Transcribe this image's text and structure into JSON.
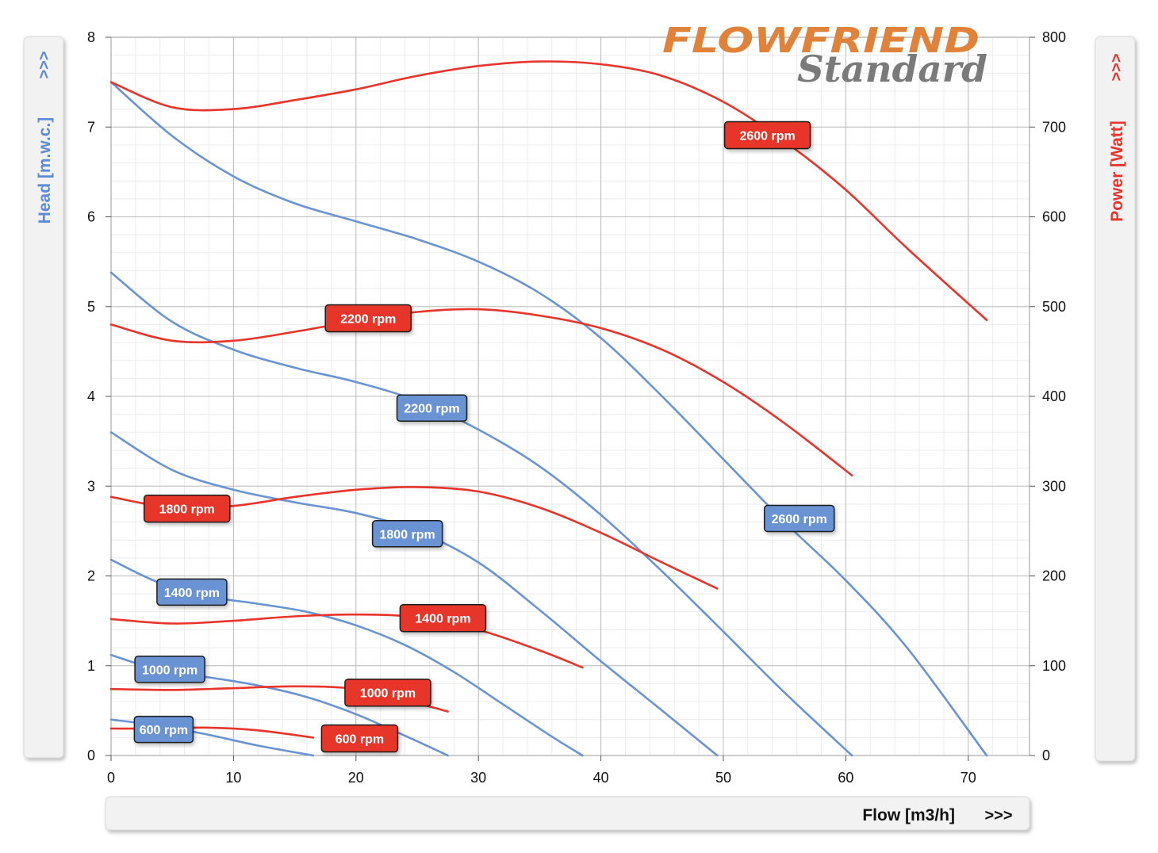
{
  "chart_data": {
    "type": "line",
    "title": "",
    "logo": {
      "line1": "FLOWFRIEND",
      "line2": "Standard",
      "line1_color": "#e0823a",
      "line2_color": "#7a7a7a"
    },
    "xlabel": "Flow [m3/h]",
    "xlabel_arrow": ">>>",
    "ylabel_left": "Head [m.w.c.]",
    "ylabel_left_arrow": ">>>",
    "ylabel_right": "Power  [Watt]",
    "ylabel_right_arrow": ">>>",
    "xlim": [
      0,
      75
    ],
    "ylim_left": [
      0,
      8
    ],
    "ylim_right": [
      0,
      800
    ],
    "x_ticks": [
      0,
      10,
      20,
      30,
      40,
      50,
      60,
      70
    ],
    "y_left_ticks": [
      0,
      1,
      2,
      3,
      4,
      5,
      6,
      7,
      8
    ],
    "y_right_ticks": [
      0,
      100,
      200,
      300,
      400,
      500,
      600,
      700,
      800
    ],
    "grid": true,
    "colors": {
      "head": "#6a93d4",
      "power": "#e8342a"
    },
    "head_series": [
      {
        "name": "600 rpm",
        "x": [
          0,
          4,
          8,
          12,
          16.5
        ],
        "y": [
          0.4,
          0.33,
          0.23,
          0.11,
          0.0
        ]
      },
      {
        "name": "1000 rpm",
        "x": [
          0,
          4,
          8,
          12,
          16,
          20,
          24,
          27.5
        ],
        "y": [
          1.12,
          0.95,
          0.87,
          0.78,
          0.65,
          0.46,
          0.22,
          0.0
        ]
      },
      {
        "name": "1400 rpm",
        "x": [
          0,
          4,
          8,
          12,
          16,
          20,
          24,
          28,
          32,
          36,
          38.5
        ],
        "y": [
          2.18,
          1.92,
          1.77,
          1.69,
          1.6,
          1.45,
          1.23,
          0.93,
          0.57,
          0.21,
          0.0
        ]
      },
      {
        "name": "1800 rpm",
        "x": [
          0,
          5,
          10,
          15,
          20,
          25,
          30,
          35,
          40,
          45,
          49.5
        ],
        "y": [
          3.6,
          3.18,
          2.96,
          2.82,
          2.7,
          2.5,
          2.15,
          1.62,
          1.05,
          0.5,
          0.0
        ]
      },
      {
        "name": "2200 rpm",
        "x": [
          0,
          5,
          10,
          15,
          20,
          25,
          30,
          35,
          40,
          45,
          50,
          55,
          60.5
        ],
        "y": [
          5.38,
          4.83,
          4.52,
          4.32,
          4.16,
          3.95,
          3.63,
          3.22,
          2.68,
          2.05,
          1.38,
          0.7,
          0.0
        ]
      },
      {
        "name": "2600 rpm",
        "x": [
          0,
          5,
          10,
          15,
          20,
          25,
          30,
          35,
          40,
          45,
          50,
          55,
          60,
          65,
          71.5
        ],
        "y": [
          7.5,
          6.9,
          6.45,
          6.15,
          5.95,
          5.75,
          5.5,
          5.15,
          4.65,
          4.0,
          3.3,
          2.6,
          1.95,
          1.2,
          0.0
        ]
      }
    ],
    "power_series": [
      {
        "name": "600 rpm",
        "x": [
          0,
          4,
          8,
          12,
          16.5
        ],
        "y": [
          30,
          30,
          31,
          28,
          20
        ]
      },
      {
        "name": "1000 rpm",
        "x": [
          0,
          5,
          10,
          15,
          20,
          25,
          27.5
        ],
        "y": [
          74,
          73,
          75,
          77,
          74,
          58,
          49
        ]
      },
      {
        "name": "1400 rpm",
        "x": [
          0,
          5,
          10,
          15,
          20,
          25,
          30,
          35,
          38.5
        ],
        "y": [
          152,
          147,
          150,
          155,
          157,
          154,
          140,
          117,
          98
        ]
      },
      {
        "name": "1800 rpm",
        "x": [
          0,
          5,
          10,
          15,
          20,
          25,
          30,
          35,
          40,
          45,
          49.5
        ],
        "y": [
          288,
          276,
          278,
          288,
          296,
          299,
          294,
          276,
          248,
          215,
          186
        ]
      },
      {
        "name": "2200 rpm",
        "x": [
          0,
          5,
          10,
          15,
          20,
          25,
          30,
          35,
          40,
          45,
          50,
          55,
          60.5
        ],
        "y": [
          480,
          462,
          462,
          472,
          484,
          494,
          497,
          490,
          476,
          452,
          416,
          370,
          312
        ]
      },
      {
        "name": "2600 rpm",
        "x": [
          0,
          5,
          10,
          15,
          20,
          25,
          30,
          35,
          40,
          45,
          50,
          55,
          60,
          65,
          71.5
        ],
        "y": [
          750,
          722,
          720,
          730,
          742,
          757,
          768,
          773,
          770,
          757,
          728,
          684,
          630,
          565,
          485
        ]
      }
    ],
    "head_labels": [
      {
        "text": "600 rpm",
        "x": 4.3,
        "y": 0.29
      },
      {
        "text": "1000 rpm",
        "x": 4.8,
        "y": 0.96
      },
      {
        "text": "1400 rpm",
        "x": 6.6,
        "y": 1.82
      },
      {
        "text": "1800 rpm",
        "x": 24.2,
        "y": 2.47
      },
      {
        "text": "2200 rpm",
        "x": 26.2,
        "y": 3.87
      },
      {
        "text": "2600 rpm",
        "x": 56.2,
        "y": 2.64
      }
    ],
    "power_labels": [
      {
        "text": "600 rpm",
        "x": 20.3,
        "y": 19
      },
      {
        "text": "1000 rpm",
        "x": 22.6,
        "y": 70
      },
      {
        "text": "1400 rpm",
        "x": 27.1,
        "y": 153
      },
      {
        "text": "1800 rpm",
        "x": 6.2,
        "y": 275
      },
      {
        "text": "2200 rpm",
        "x": 21.0,
        "y": 487
      },
      {
        "text": "2600 rpm",
        "x": 53.6,
        "y": 691
      }
    ]
  }
}
